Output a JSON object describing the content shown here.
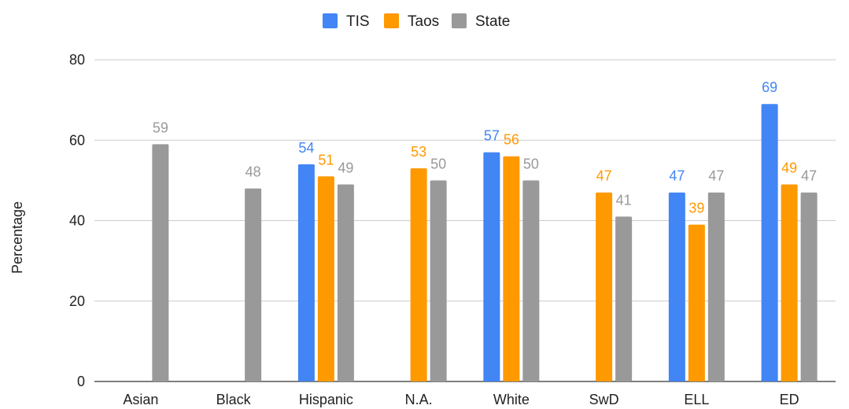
{
  "chart_data": {
    "type": "bar",
    "title": "",
    "xlabel": "",
    "ylabel": "Percentage",
    "ylim": [
      0,
      80
    ],
    "yticks": [
      0,
      20,
      40,
      60,
      80
    ],
    "grid": true,
    "legend_position": "top",
    "categories": [
      "Asian",
      "Black",
      "Hispanic",
      "N.A.",
      "White",
      "SwD",
      "ELL",
      "ED"
    ],
    "series": [
      {
        "name": "TIS",
        "color": "#4285F4",
        "values": [
          null,
          null,
          54,
          null,
          57,
          null,
          47,
          69
        ]
      },
      {
        "name": "Taos",
        "color": "#FF9900",
        "values": [
          null,
          null,
          51,
          53,
          56,
          47,
          39,
          49
        ]
      },
      {
        "name": "State",
        "color": "#999999",
        "values": [
          59,
          48,
          49,
          50,
          50,
          41,
          47,
          47
        ]
      }
    ]
  }
}
